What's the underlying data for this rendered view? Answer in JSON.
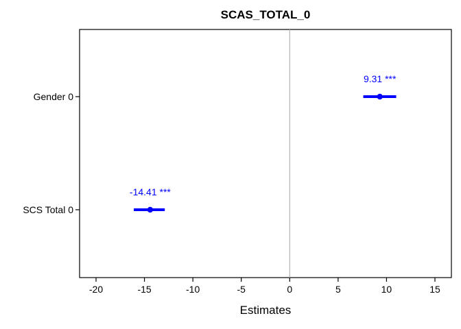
{
  "chart_data": {
    "type": "forest",
    "title": "SCAS_TOTAL_0",
    "xlabel": "Estimates",
    "ylabel": "",
    "xlim": [
      -21.7,
      16.7
    ],
    "xticks": [
      -20,
      -15,
      -10,
      -5,
      0,
      5,
      10,
      15
    ],
    "reference_line": 0,
    "grid": false,
    "color": "#0000ff",
    "terms": [
      {
        "label": "Gender 0",
        "estimate": 9.31,
        "ci_low": 7.6,
        "ci_high": 11.0,
        "text": "9.31 ***"
      },
      {
        "label": "SCS Total 0",
        "estimate": -14.41,
        "ci_low": -16.1,
        "ci_high": -12.9,
        "text": "-14.41 ***"
      }
    ]
  }
}
